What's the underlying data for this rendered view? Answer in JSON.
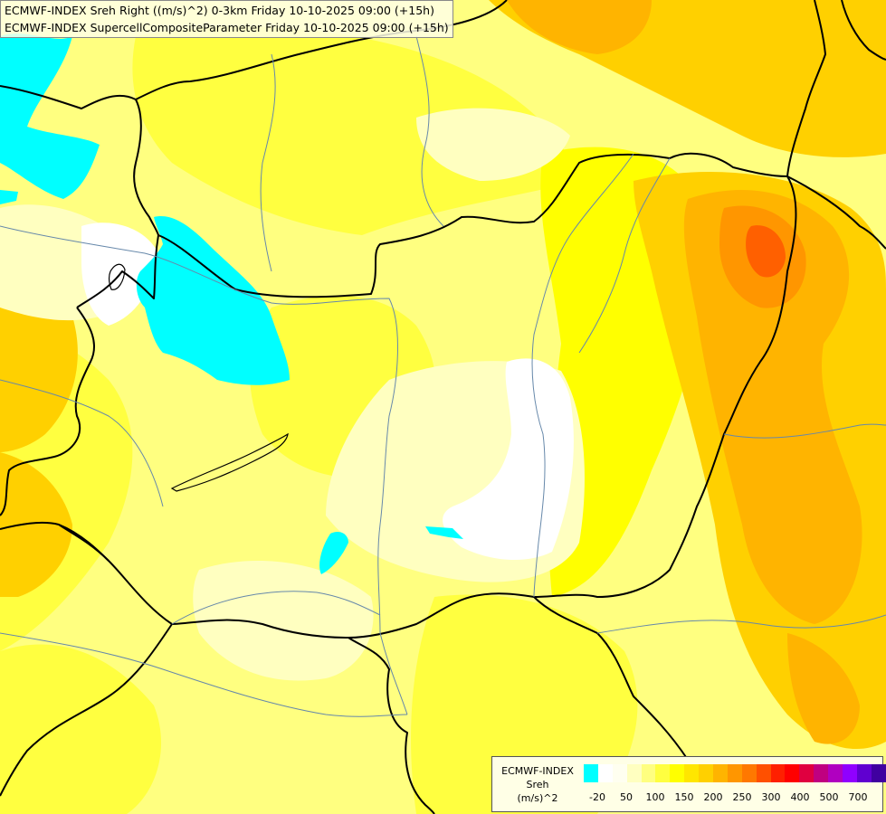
{
  "title": {
    "line1": "ECMWF-INDEX Sreh Right ((m/s)^2) 0-3km Friday 10-10-2025 09:00 (+15h)",
    "line2": "ECMWF-INDEX SupercellCompositeParameter Friday 10-10-2025 09:00 (+15h)"
  },
  "legend": {
    "model": "ECMWF-INDEX",
    "variable": "Sreh",
    "unit": "(m/s)^2",
    "colors": [
      "#00ffff",
      "#ffffff",
      "#fffff0",
      "#ffffc0",
      "#ffff80",
      "#ffff40",
      "#ffff00",
      "#ffe600",
      "#ffd000",
      "#ffb400",
      "#ff9600",
      "#ff7800",
      "#ff5000",
      "#ff2000",
      "#ff0000",
      "#e00040",
      "#c00080",
      "#b000c0",
      "#9000ff",
      "#6000d0",
      "#4000a0",
      "#200070"
    ],
    "tick_labels": [
      "-20",
      "50",
      "100",
      "150",
      "200",
      "250",
      "300",
      "400",
      "500",
      "700"
    ]
  },
  "colors": {
    "cyan": "#00ffff",
    "white": "#ffffff",
    "pale": "#ffffc0",
    "light_yellow": "#ffff80",
    "yellow": "#ffff00",
    "gold": "#ffd000",
    "orange": "#ffb400",
    "dark_orange": "#ff9600",
    "red_orange": "#ff6000",
    "border": "#000000",
    "river": "#6688aa"
  }
}
